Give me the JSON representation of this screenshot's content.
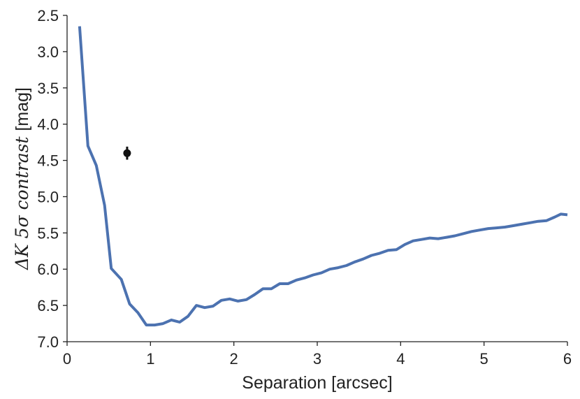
{
  "chart_data": {
    "type": "line",
    "title": "",
    "xlabel": "Separation [arcsec]",
    "ylabel_prefix": "ΔK 5σ contrast ",
    "ylabel_unit": "[mag]",
    "xlim": [
      0,
      6
    ],
    "ylim": [
      7.0,
      2.5
    ],
    "y_inverted": true,
    "grid": false,
    "x_ticks": [
      "0",
      "1",
      "2",
      "3",
      "4",
      "5",
      "6"
    ],
    "y_ticks": [
      "2.5",
      "3.0",
      "3.5",
      "4.0",
      "4.5",
      "5.0",
      "5.5",
      "6.0",
      "6.5",
      "7.0"
    ],
    "series": [
      {
        "color": "#4c72b0",
        "x": [
          0.15,
          0.25,
          0.35,
          0.45,
          0.53,
          0.65,
          0.75,
          0.85,
          0.95,
          1.05,
          1.15,
          1.25,
          1.35,
          1.45,
          1.55,
          1.65,
          1.75,
          1.85,
          1.95,
          2.05,
          2.15,
          2.25,
          2.35,
          2.45,
          2.55,
          2.65,
          2.75,
          2.85,
          2.95,
          3.05,
          3.15,
          3.25,
          3.35,
          3.45,
          3.55,
          3.65,
          3.75,
          3.85,
          3.95,
          4.05,
          4.15,
          4.25,
          4.35,
          4.45,
          4.55,
          4.65,
          4.75,
          4.85,
          4.95,
          5.05,
          5.15,
          5.25,
          5.35,
          5.45,
          5.55,
          5.65,
          5.75,
          5.85,
          5.92,
          6.0
        ],
        "y": [
          2.65,
          4.3,
          4.57,
          5.12,
          5.99,
          6.14,
          6.48,
          6.6,
          6.77,
          6.77,
          6.75,
          6.7,
          6.73,
          6.65,
          6.5,
          6.53,
          6.51,
          6.43,
          6.41,
          6.44,
          6.42,
          6.35,
          6.27,
          6.27,
          6.2,
          6.2,
          6.15,
          6.12,
          6.08,
          6.05,
          6.0,
          5.98,
          5.95,
          5.9,
          5.86,
          5.81,
          5.78,
          5.74,
          5.73,
          5.66,
          5.61,
          5.59,
          5.57,
          5.58,
          5.56,
          5.54,
          5.51,
          5.48,
          5.46,
          5.44,
          5.43,
          5.42,
          5.4,
          5.38,
          5.36,
          5.34,
          5.33,
          5.28,
          5.24,
          5.25
        ]
      }
    ],
    "points": [
      {
        "x": 0.72,
        "y": 4.4,
        "y_err": 0.09,
        "color": "#111111"
      }
    ]
  }
}
